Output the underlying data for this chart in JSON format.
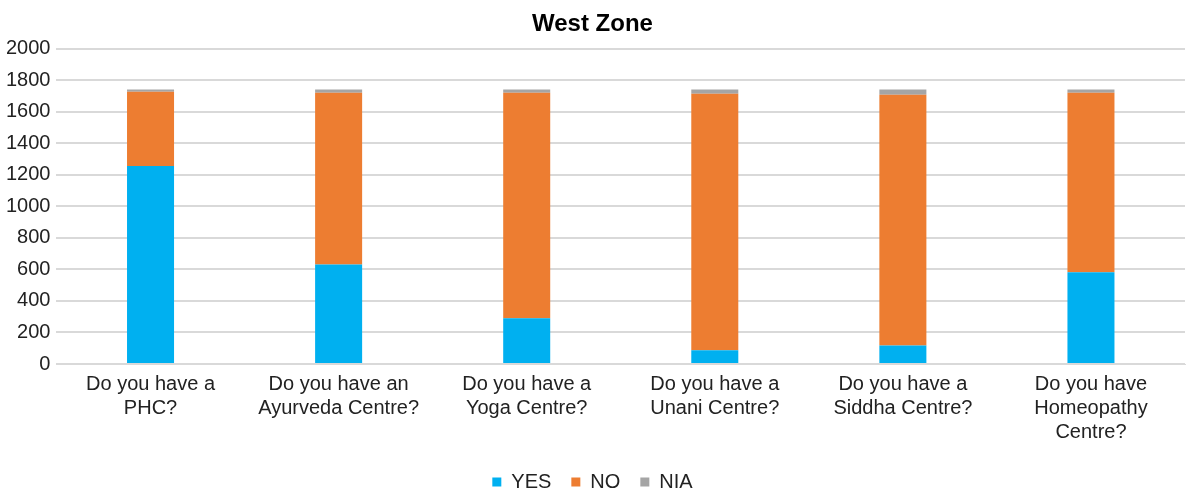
{
  "chart_data": {
    "type": "bar",
    "title": "West Zone",
    "stacked": true,
    "categories": [
      "Do you have a PHC?",
      "Do you have an Ayurveda Centre?",
      "Do you have a Yoga Centre?",
      "Do you have a Unani Centre?",
      "Do you have a Siddha Centre?",
      "Do you have Homeopathy Centre?"
    ],
    "series": [
      {
        "name": "YES",
        "color": "#00b0f0",
        "values": [
          1256,
          632,
          290,
          88,
          118,
          582
        ]
      },
      {
        "name": "NO",
        "color": "#ed7d31",
        "values": [
          472,
          1089,
          1431,
          1627,
          1590,
          1139
        ]
      },
      {
        "name": "NIA",
        "color": "#a5a5a5",
        "values": [
          14,
          21,
          21,
          27,
          34,
          21
        ]
      }
    ],
    "ylim": [
      0,
      2000
    ],
    "yticks": [
      0,
      200,
      400,
      600,
      800,
      1000,
      1200,
      1400,
      1600,
      1800,
      2000
    ],
    "grid": "y",
    "legend": "bottom"
  }
}
